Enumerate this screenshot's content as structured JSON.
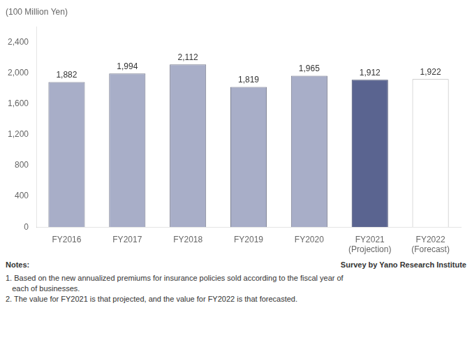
{
  "chart_data": {
    "type": "bar",
    "ylabel": "(100 Million Yen)",
    "categories": [
      "FY2016",
      "FY2017",
      "FY2018",
      "FY2019",
      "FY2020",
      "FY2021\n(Projection)",
      "FY2022\n(Forecast)"
    ],
    "values": [
      1882,
      1994,
      2112,
      1819,
      1965,
      1912,
      1922
    ],
    "value_labels": [
      "1,882",
      "1,994",
      "2,112",
      "1,819",
      "1,965",
      "1,912",
      "1,922"
    ],
    "colors": [
      "#a8aec8",
      "#a8aec8",
      "#a8aec8",
      "#a8aec8",
      "#a8aec8",
      "#5a6490",
      "#ffffff"
    ],
    "ylim": [
      0,
      2600
    ],
    "yticks": [
      0,
      400,
      800,
      {
        "value": 1200,
        "label": "1,200"
      },
      {
        "value": 1600,
        "label": "1,600"
      },
      {
        "value": 2000,
        "label": "2,000"
      },
      {
        "value": 2400,
        "label": "2,400"
      }
    ],
    "grid": false,
    "data_labels": true,
    "annotations": [
      "Notes:",
      "Survey by Yano Research Institute",
      "1. Based on the new annualized premiums for insurance policies sold according to the fiscal year of",
      "   each of businesses.",
      "2. The value for FY2021 is that projected, and the value for FY2022 is that forecasted."
    ]
  }
}
